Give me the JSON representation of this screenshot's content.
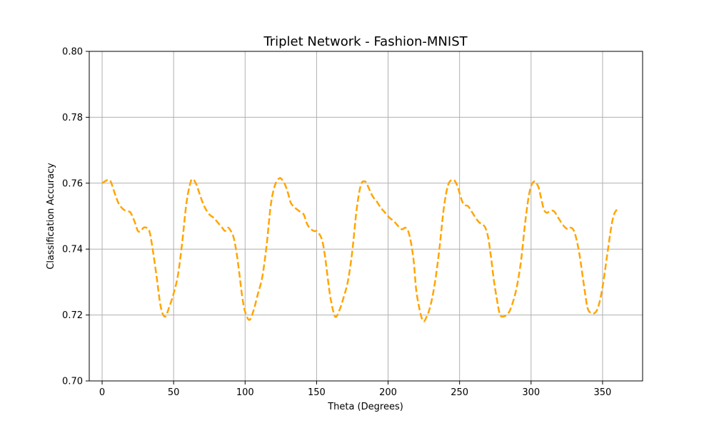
{
  "chart_data": {
    "type": "line",
    "title": "Triplet Network - Fashion-MNIST",
    "xlabel": "Theta (Degrees)",
    "ylabel": "Classification Accuracy",
    "xlim": [
      -9,
      378
    ],
    "ylim": [
      0.7,
      0.8
    ],
    "xticks": [
      0,
      50,
      100,
      150,
      200,
      250,
      300,
      350
    ],
    "yticks": [
      0.7,
      0.72,
      0.74,
      0.76,
      0.78,
      0.8
    ],
    "ytick_labels": [
      "0.70",
      "0.72",
      "0.74",
      "0.76",
      "0.78",
      "0.80"
    ],
    "xtick_labels": [
      "0",
      "50",
      "100",
      "150",
      "200",
      "250",
      "300",
      "350"
    ],
    "grid": true,
    "series": [
      {
        "color": "#ffa500",
        "line_style": "dashed",
        "x": [
          0,
          4,
          6,
          8,
          10,
          12,
          15,
          18,
          20,
          23,
          25,
          27,
          29,
          31,
          33,
          35,
          38,
          41,
          44,
          47,
          50,
          53,
          56,
          59,
          62,
          64,
          66,
          68,
          70,
          72,
          75,
          78,
          81,
          84,
          86,
          88,
          90,
          92,
          94,
          96,
          98,
          100,
          103,
          106,
          109,
          112,
          115,
          118,
          121,
          124,
          126,
          128,
          130,
          132,
          135,
          138,
          141,
          143,
          145,
          148,
          150,
          152,
          154,
          156,
          158,
          160,
          163,
          166,
          169,
          172,
          175,
          178,
          181,
          184,
          186,
          188,
          190,
          192,
          195,
          198,
          201,
          204,
          206,
          208,
          210,
          212,
          214,
          216,
          218,
          220,
          224,
          227,
          230,
          233,
          236,
          239,
          242,
          245,
          247,
          249,
          251,
          253,
          256,
          259,
          262,
          264,
          266,
          268,
          270,
          272,
          274,
          276,
          278,
          280,
          284,
          287,
          290,
          293,
          296,
          299,
          302,
          305,
          307,
          309,
          311,
          313,
          316,
          319,
          322,
          324,
          326,
          328,
          330,
          332,
          334,
          336,
          338,
          340,
          344,
          347,
          350,
          353,
          356,
          358,
          360
        ],
        "y": [
          0.76,
          0.761,
          0.7605,
          0.758,
          0.7555,
          0.7535,
          0.752,
          0.7515,
          0.751,
          0.748,
          0.7455,
          0.7455,
          0.7465,
          0.7465,
          0.7455,
          0.741,
          0.732,
          0.7225,
          0.7195,
          0.7225,
          0.7265,
          0.732,
          0.742,
          0.754,
          0.7605,
          0.761,
          0.7595,
          0.757,
          0.7545,
          0.7525,
          0.7505,
          0.7495,
          0.748,
          0.7465,
          0.7455,
          0.7465,
          0.7455,
          0.7435,
          0.739,
          0.7325,
          0.7255,
          0.721,
          0.7185,
          0.7215,
          0.7265,
          0.7315,
          0.741,
          0.7535,
          0.7595,
          0.7615,
          0.761,
          0.7595,
          0.757,
          0.754,
          0.7525,
          0.7515,
          0.7505,
          0.748,
          0.7465,
          0.7455,
          0.7455,
          0.7445,
          0.7425,
          0.7375,
          0.7305,
          0.7245,
          0.7195,
          0.7215,
          0.7255,
          0.7305,
          0.7395,
          0.752,
          0.7595,
          0.7605,
          0.759,
          0.757,
          0.7555,
          0.7545,
          0.7525,
          0.751,
          0.7495,
          0.7485,
          0.7475,
          0.7465,
          0.746,
          0.7465,
          0.7455,
          0.742,
          0.736,
          0.7265,
          0.7185,
          0.7195,
          0.7235,
          0.7305,
          0.7405,
          0.7525,
          0.7595,
          0.761,
          0.7605,
          0.7585,
          0.7555,
          0.7535,
          0.753,
          0.751,
          0.749,
          0.748,
          0.7475,
          0.7465,
          0.7435,
          0.7375,
          0.7305,
          0.725,
          0.7205,
          0.7195,
          0.7205,
          0.7235,
          0.7285,
          0.7365,
          0.7485,
          0.7575,
          0.7605,
          0.759,
          0.7555,
          0.752,
          0.751,
          0.7515,
          0.7515,
          0.7495,
          0.7475,
          0.7465,
          0.746,
          0.7465,
          0.7455,
          0.7425,
          0.738,
          0.732,
          0.726,
          0.7215,
          0.7205,
          0.7225,
          0.7285,
          0.7375,
          0.7465,
          0.7505,
          0.752
        ]
      }
    ]
  }
}
